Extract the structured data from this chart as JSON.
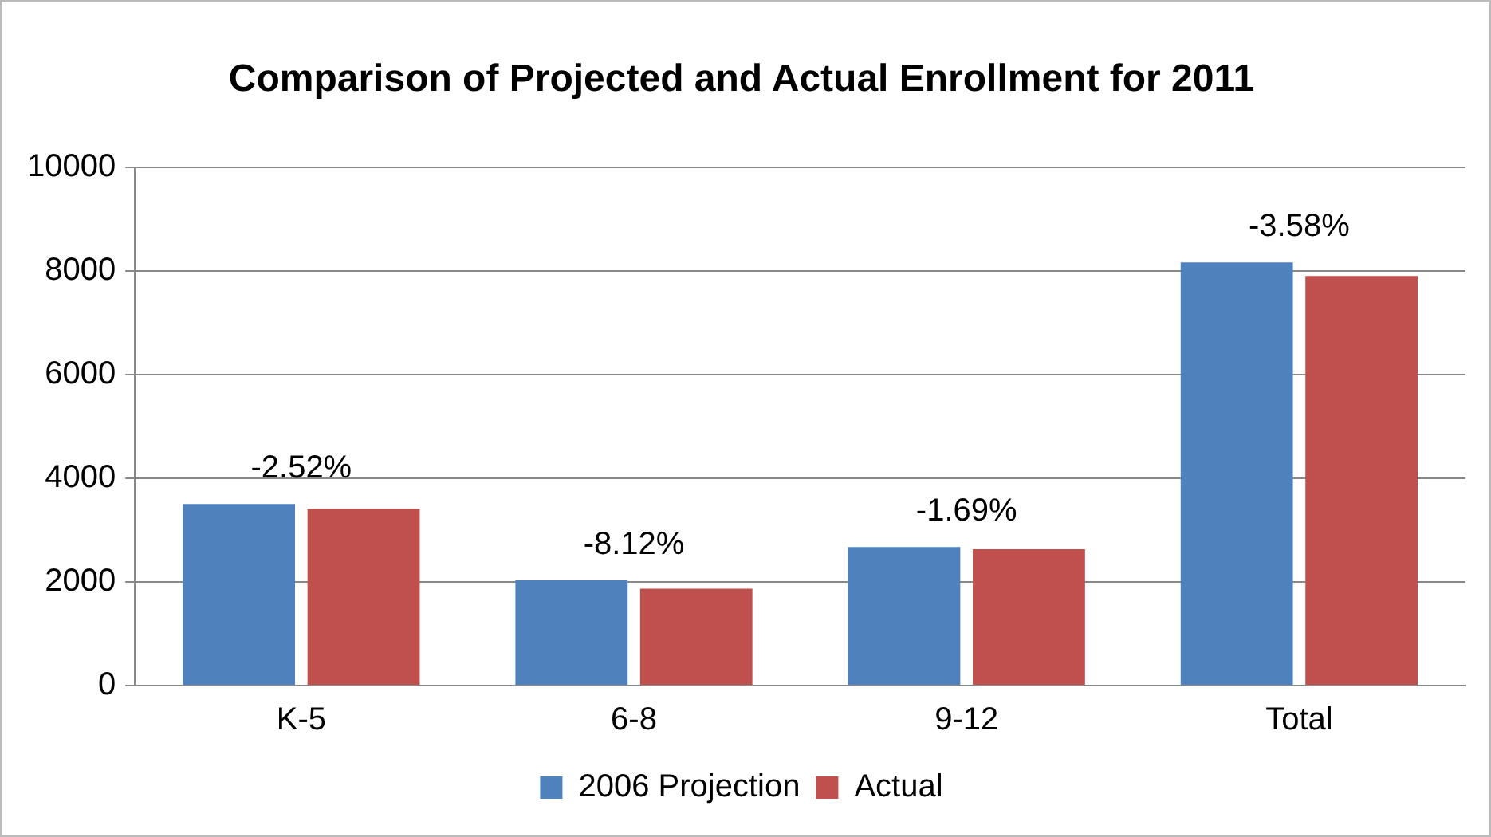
{
  "chart_data": {
    "type": "bar",
    "title": "Comparison of Projected and Actual Enrollment for 2011",
    "categories": [
      "K-5",
      "6-8",
      "9-12",
      "Total"
    ],
    "series": [
      {
        "name": "2006 Projection",
        "color": "#4f81bd",
        "values": [
          3500,
          2030,
          2670,
          8160
        ]
      },
      {
        "name": "Actual",
        "color": "#c0504d",
        "values": [
          3410,
          1870,
          2630,
          7900
        ]
      }
    ],
    "ylim": [
      0,
      10000
    ],
    "yticks": [
      0,
      2000,
      4000,
      6000,
      8000,
      10000
    ],
    "grid": "y",
    "legend": "bottom",
    "annotations": [
      {
        "text": "-2.52%",
        "x": "K-5",
        "y": 3500
      },
      {
        "text": "-8.12%",
        "x": "6-8",
        "y": 2030
      },
      {
        "text": "-1.69%",
        "x": "9-12",
        "y": 2670
      },
      {
        "text": "-3.58%",
        "x": "Total",
        "y": 8160
      }
    ]
  }
}
